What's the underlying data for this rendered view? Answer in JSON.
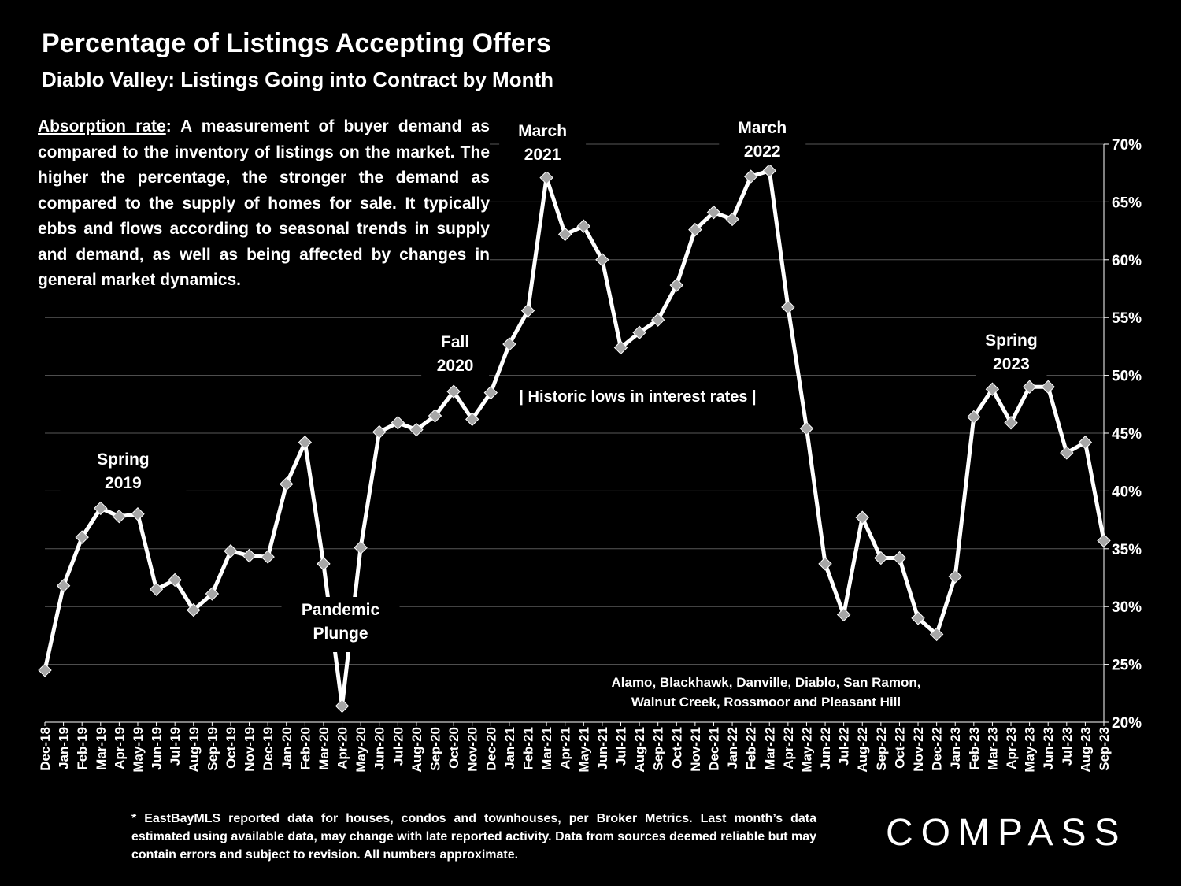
{
  "header": {
    "title": "Percentage of Listings Accepting Offers",
    "subtitle": "Diablo Valley: Listings Going into Contract by Month"
  },
  "description": {
    "term": "Absorption rate",
    "text": ":  A measurement of buyer demand as compared to the inventory of listings on the market. The higher the percentage, the stronger the demand as compared to the supply of homes for sale. It typically ebbs and flows according to seasonal trends in supply and demand, as well as being affected by changes in general market dynamics."
  },
  "footnote": "* EastBayMLS reported data for houses, condos and townhouses, per Broker Metrics. Last month’s data estimated using available data, may change with late reported activity. Data from sources deemed reliable but may contain errors and subject to revision. All numbers approximate.",
  "logo": "COMPASS",
  "colors": {
    "background": "#000000",
    "line": "#ffffff",
    "marker": "#a6a6a6",
    "grid": "#595959"
  },
  "chart_data": {
    "type": "line",
    "title": "Percentage of Listings Accepting Offers",
    "xlabel": "",
    "ylabel": "",
    "ylim": [
      20,
      70
    ],
    "yticks": [
      "20%",
      "25%",
      "30%",
      "35%",
      "40%",
      "45%",
      "50%",
      "55%",
      "60%",
      "65%",
      "70%"
    ],
    "grid": "horizontal",
    "y_axis_side": "right",
    "marker": "diamond",
    "categories": [
      "Dec-18",
      "Jan-19",
      "Feb-19",
      "Mar-19",
      "Apr-19",
      "May-19",
      "Jun-19",
      "Jul-19",
      "Aug-19",
      "Sep-19",
      "Oct-19",
      "Nov-19",
      "Dec-19",
      "Jan-20",
      "Feb-20",
      "Mar-20",
      "Apr-20",
      "May-20",
      "Jun-20",
      "Jul-20",
      "Aug-20",
      "Sep-20",
      "Oct-20",
      "Nov-20",
      "Dec-20",
      "Jan-21",
      "Feb-21",
      "Mar-21",
      "Apr-21",
      "May-21",
      "Jun-21",
      "Jul-21",
      "Aug-21",
      "Sep-21",
      "Oct-21",
      "Nov-21",
      "Dec-21",
      "Jan-22",
      "Feb-22",
      "Mar-22",
      "Apr-22",
      "May-22",
      "Jun-22",
      "Jul-22",
      "Aug-22",
      "Sep-22",
      "Oct-22",
      "Nov-22",
      "Dec-22",
      "Jan-23",
      "Feb-23",
      "Mar-23",
      "Apr-23",
      "May-23",
      "Jun-23",
      "Jul-23",
      "Aug-23",
      "Sep-23"
    ],
    "values": [
      24.5,
      31.8,
      36.0,
      38.5,
      37.8,
      38.0,
      31.5,
      32.3,
      29.7,
      31.1,
      34.8,
      34.4,
      34.3,
      40.6,
      44.2,
      33.7,
      21.4,
      35.1,
      45.1,
      45.9,
      45.3,
      46.5,
      48.6,
      46.2,
      48.5,
      52.7,
      55.6,
      67.1,
      62.2,
      62.9,
      60.0,
      52.4,
      53.7,
      54.8,
      57.8,
      62.6,
      64.1,
      63.5,
      67.2,
      67.7,
      55.9,
      45.4,
      33.7,
      29.3,
      37.7,
      34.2,
      34.2,
      29.0,
      27.6,
      32.6,
      46.4,
      48.8,
      45.9,
      49.0,
      49.0,
      43.3,
      44.2,
      35.7
    ],
    "annotations": [
      {
        "text": [
          "Spring",
          "2019"
        ],
        "at": "Apr-19"
      },
      {
        "text": [
          "Pandemic",
          "Plunge"
        ],
        "at": "Apr-20"
      },
      {
        "text": [
          "Fall",
          "2020"
        ],
        "at": "Oct-20"
      },
      {
        "text": [
          "March",
          "2021"
        ],
        "at": "Mar-21"
      },
      {
        "text": [
          "March",
          "2022"
        ],
        "at": "Mar-22"
      },
      {
        "text": [
          "Spring",
          "2023"
        ],
        "at": "Mar-23"
      },
      {
        "text": [
          "| Historic lows in interest rates |"
        ]
      },
      {
        "text": [
          "Alamo, Blackhawk, Danville, Diablo, San Ramon,",
          "Walnut Creek, Rossmoor and Pleasant Hill"
        ]
      }
    ]
  }
}
